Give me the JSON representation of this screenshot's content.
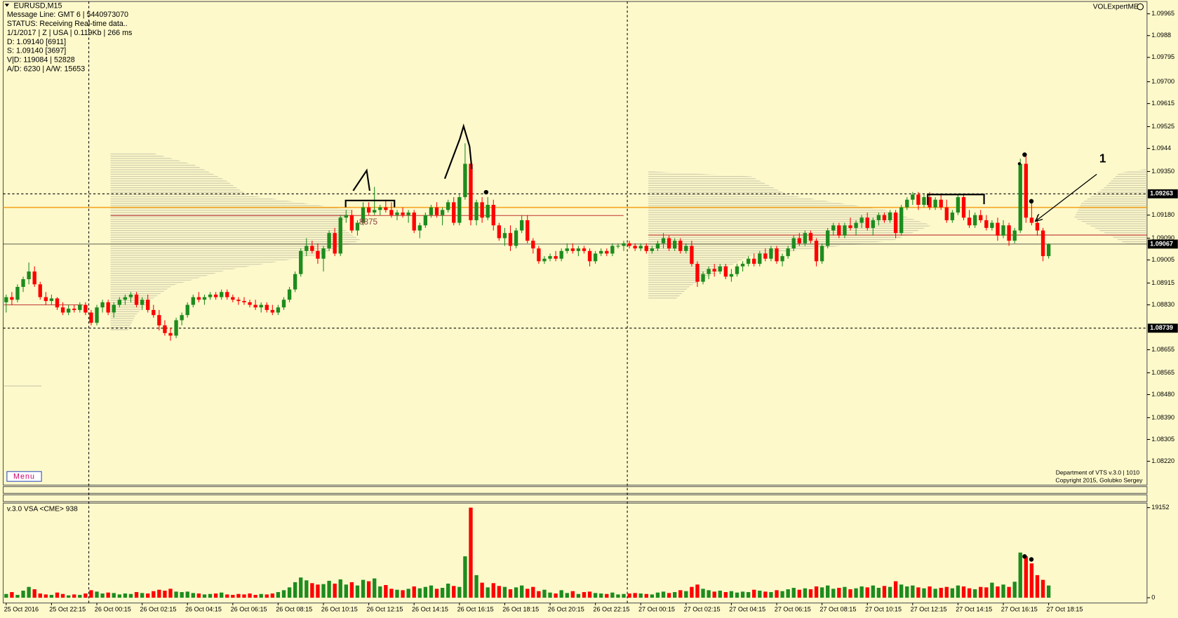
{
  "chart_data": [
    {
      "type": "candlestick",
      "title": "EURUSD,M15",
      "categories": [
        "25 Oct 2016",
        null,
        null,
        null,
        null,
        null,
        null,
        null,
        "25 Oct 22:15",
        null,
        null,
        null,
        null,
        null,
        null,
        null,
        "26 Oct 00:15",
        null,
        null,
        null,
        null,
        null,
        null,
        null,
        "26 Oct 02:15",
        null,
        null,
        null,
        null,
        null,
        null,
        null,
        "26 Oct 04:15",
        null,
        null,
        null,
        null,
        null,
        null,
        null,
        "26 Oct 06:15",
        null,
        null,
        null,
        null,
        null,
        null,
        null,
        "26 Oct 08:15",
        null,
        null,
        null,
        null,
        null,
        null,
        null,
        "26 Oct 10:15",
        null,
        null,
        null,
        null,
        null,
        null,
        null,
        "26 Oct 12:15",
        null,
        null,
        null,
        null,
        null,
        null,
        null,
        "26 Oct 14:15",
        null,
        null,
        null,
        null,
        null,
        null,
        null,
        "26 Oct 16:15",
        null,
        null,
        null,
        null,
        null,
        null,
        null,
        "26 Oct 18:15",
        null,
        null,
        null,
        null,
        null,
        null,
        null,
        "26 Oct 20:15",
        null,
        null,
        null,
        null,
        null,
        null,
        null,
        "26 Oct 22:15",
        null,
        null,
        null,
        null,
        null,
        null,
        null,
        "27 Oct 00:15",
        null,
        null,
        null,
        null,
        null,
        null,
        null,
        "27 Oct 02:15",
        null,
        null,
        null,
        null,
        null,
        null,
        null,
        "27 Oct 04:15",
        null,
        null,
        null,
        null,
        null,
        null,
        null,
        "27 Oct 06:15",
        null,
        null,
        null,
        null,
        null,
        null,
        null,
        "27 Oct 08:15",
        null,
        null,
        null,
        null,
        null,
        null,
        null,
        "27 Oct 10:15",
        null,
        null,
        null,
        null,
        null,
        null,
        null,
        "27 Oct 12:15",
        null,
        null,
        null,
        null,
        null,
        null,
        null,
        "27 Oct 14:15",
        null,
        null,
        null,
        null,
        null,
        null,
        null,
        "27 Oct 16:15",
        null,
        null,
        null,
        null,
        null,
        null,
        null,
        "27 Oct 18:15"
      ],
      "open": [
        1.0884,
        1.0886,
        1.0885,
        1.089,
        1.0893,
        1.0896,
        1.0891,
        1.0886,
        1.08845,
        1.08855,
        1.0882,
        1.088,
        1.08815,
        1.0881,
        1.0883,
        1.088,
        1.0876,
        1.0882,
        1.0884,
        1.088,
        1.0883,
        1.0885,
        1.0886,
        1.0887,
        1.0883,
        1.0885,
        1.0881,
        1.0879,
        1.0875,
        1.0872,
        1.0871,
        1.0877,
        1.0879,
        1.0883,
        1.0886,
        1.0885,
        1.0886,
        1.0887,
        1.0886,
        1.0888,
        1.0886,
        1.0885,
        1.08845,
        1.0884,
        1.0883,
        1.0882,
        1.0883,
        1.0881,
        1.088,
        1.0882,
        1.0885,
        1.0889,
        1.0895,
        1.0904,
        1.0906,
        1.0904,
        1.0901,
        1.0905,
        1.0911,
        1.0903,
        1.0917,
        1.0918,
        1.0912,
        1.0915,
        1.0921,
        1.0919,
        1.092,
        1.0921,
        1.092,
        1.0918,
        1.0919,
        1.0918,
        1.0919,
        1.0912,
        1.0914,
        1.0918,
        1.0921,
        1.0918,
        1.092,
        1.0923,
        1.0915,
        1.0925,
        1.0938,
        1.0916,
        1.0923,
        1.0917,
        1.0922,
        1.0914,
        1.0909,
        1.0911,
        1.0906,
        1.0912,
        1.0916,
        1.0908,
        1.0905,
        1.09,
        1.0901,
        1.0902,
        1.0901,
        1.0904,
        1.0905,
        1.0904,
        1.0905,
        1.0904,
        1.09,
        1.0903,
        1.0904,
        1.0903,
        1.0906,
        1.0906,
        1.0907,
        1.0906,
        1.0905,
        1.0906,
        1.0904,
        1.0905,
        1.0907,
        1.0909,
        1.0905,
        1.0908,
        1.0904,
        1.0906,
        1.0899,
        1.0892,
        1.0895,
        1.0897,
        1.0896,
        1.0898,
        1.0894,
        1.0895,
        1.0898,
        1.0899,
        1.0901,
        1.0899,
        1.0903,
        1.0901,
        1.0905,
        1.09,
        1.0902,
        1.0905,
        1.0909,
        1.0907,
        1.0911,
        1.0908,
        1.09,
        1.0906,
        1.0912,
        1.0914,
        1.091,
        1.0914,
        1.0913,
        1.0915,
        1.0917,
        1.0913,
        1.0916,
        1.0918,
        1.0916,
        1.0919,
        1.0911,
        1.0921,
        1.0924,
        1.0926,
        1.0922,
        1.0925,
        1.0921,
        1.0924,
        1.0921,
        1.0916,
        1.0919,
        1.0925,
        1.0917,
        1.0914,
        1.0918,
        1.0916,
        1.0913,
        1.0915,
        1.091,
        1.0914,
        1.0908,
        1.0912,
        1.0938,
        1.0917,
        1.0915,
        1.0912,
        1.0902
      ],
      "high": [
        1.0887,
        1.0888,
        1.0891,
        1.0894,
        1.08995,
        1.0898,
        1.0892,
        1.0888,
        1.0887,
        1.0886,
        1.0884,
        1.0883,
        1.0883,
        1.0884,
        1.0884,
        1.0881,
        1.0883,
        1.0885,
        1.0885,
        1.0884,
        1.0886,
        1.0887,
        1.0888,
        1.0888,
        1.0886,
        1.0887,
        1.0883,
        1.0881,
        1.0877,
        1.0874,
        1.0878,
        1.088,
        1.0884,
        1.0887,
        1.0888,
        1.0887,
        1.0888,
        1.0888,
        1.0889,
        1.0889,
        1.0887,
        1.0886,
        1.0886,
        1.0885,
        1.0885,
        1.0884,
        1.0884,
        1.0883,
        1.0883,
        1.0886,
        1.089,
        1.0896,
        1.0905,
        1.0909,
        1.0908,
        1.0907,
        1.0906,
        1.0912,
        1.0913,
        1.0918,
        1.092,
        1.092,
        1.0916,
        1.0923,
        1.0923,
        1.0929,
        1.0922,
        1.0924,
        1.0923,
        1.092,
        1.0921,
        1.092,
        1.092,
        1.0915,
        1.0919,
        1.0922,
        1.0923,
        1.0921,
        1.0924,
        1.0925,
        1.0926,
        1.0946,
        1.0939,
        1.0924,
        1.0925,
        1.0925,
        1.0924,
        1.0915,
        1.0913,
        1.0914,
        1.0913,
        1.0918,
        1.0918,
        1.0909,
        1.0906,
        1.0902,
        1.0903,
        1.0904,
        1.0905,
        1.0907,
        1.0907,
        1.0906,
        1.0906,
        1.0905,
        1.0904,
        1.0905,
        1.0905,
        1.0907,
        1.0907,
        1.0908,
        1.0908,
        1.0907,
        1.0907,
        1.0907,
        1.0906,
        1.0908,
        1.0911,
        1.091,
        1.0909,
        1.0909,
        1.0907,
        1.0908,
        1.09,
        1.0896,
        1.0898,
        1.0899,
        1.0899,
        1.0899,
        1.0897,
        1.0899,
        1.09,
        1.0902,
        1.0903,
        1.0904,
        1.0905,
        1.0906,
        1.0906,
        1.0903,
        1.0906,
        1.091,
        1.0911,
        1.0912,
        1.0912,
        1.0909,
        1.0907,
        1.0913,
        1.0915,
        1.0915,
        1.0915,
        1.0917,
        1.0916,
        1.0918,
        1.0919,
        1.0917,
        1.0919,
        1.0919,
        1.092,
        1.092,
        1.0922,
        1.0925,
        1.0927,
        1.0927,
        1.0926,
        1.0927,
        1.0925,
        1.0926,
        1.0924,
        1.092,
        1.0926,
        1.0926,
        1.092,
        1.0919,
        1.092,
        1.0918,
        1.0916,
        1.0917,
        1.0916,
        1.0915,
        1.0913,
        1.094,
        1.0942,
        1.0923,
        1.0918,
        1.0913,
        1.0907
      ],
      "low": [
        1.088,
        1.0883,
        1.0884,
        1.0888,
        1.0891,
        1.089,
        1.0885,
        1.0883,
        1.0883,
        1.0881,
        1.0879,
        1.0879,
        1.088,
        1.088,
        1.0879,
        1.0875,
        1.0875,
        1.088,
        1.0879,
        1.0878,
        1.0882,
        1.0883,
        1.0884,
        1.0882,
        1.0881,
        1.088,
        1.0878,
        1.0873,
        1.0871,
        1.0869,
        1.087,
        1.0875,
        1.0878,
        1.0882,
        1.0884,
        1.0883,
        1.0885,
        1.0885,
        1.0885,
        1.0885,
        1.0884,
        1.0883,
        1.0883,
        1.0882,
        1.0881,
        1.088,
        1.088,
        1.0879,
        1.0879,
        1.0881,
        1.0884,
        1.0888,
        1.0894,
        1.0902,
        1.0903,
        1.0899,
        1.0896,
        1.0904,
        1.0902,
        1.0902,
        1.0915,
        1.0911,
        1.091,
        1.0914,
        1.0918,
        1.0918,
        1.0918,
        1.0919,
        1.0917,
        1.0916,
        1.0917,
        1.0915,
        1.0911,
        1.0909,
        1.0913,
        1.0917,
        1.0917,
        1.0914,
        1.0919,
        1.0914,
        1.0914,
        1.0924,
        1.0914,
        1.0914,
        1.0915,
        1.0916,
        1.0912,
        1.0908,
        1.0906,
        1.0904,
        1.0905,
        1.0911,
        1.0907,
        1.0903,
        1.0899,
        1.0899,
        1.09,
        1.09,
        1.09,
        1.0903,
        1.0903,
        1.0902,
        1.0903,
        1.0898,
        1.0899,
        1.0902,
        1.0902,
        1.0902,
        1.0905,
        1.0904,
        1.0905,
        1.0904,
        1.0904,
        1.0903,
        1.0903,
        1.0904,
        1.0905,
        1.0904,
        1.0904,
        1.0903,
        1.0903,
        1.0898,
        1.089,
        1.0891,
        1.0893,
        1.0894,
        1.0895,
        1.0893,
        1.0892,
        1.0894,
        1.0896,
        1.0898,
        1.0898,
        1.0898,
        1.09,
        1.09,
        1.0899,
        1.0898,
        1.0901,
        1.0904,
        1.0906,
        1.0906,
        1.0907,
        1.0898,
        1.0899,
        1.0905,
        1.091,
        1.0909,
        1.0909,
        1.0912,
        1.091,
        1.0913,
        1.0912,
        1.091,
        1.0914,
        1.0915,
        1.0915,
        1.0909,
        1.091,
        1.092,
        1.0922,
        1.092,
        1.0921,
        1.092,
        1.092,
        1.092,
        1.0915,
        1.0915,
        1.0918,
        1.0916,
        1.0913,
        1.0913,
        1.0915,
        1.0912,
        1.0912,
        1.0908,
        1.0909,
        1.0906,
        1.0907,
        1.0911,
        1.0915,
        1.0914,
        1.091,
        1.09,
        1.0901
      ],
      "close": [
        1.0886,
        1.0885,
        1.089,
        1.0893,
        1.0896,
        1.0891,
        1.0886,
        1.08845,
        1.08855,
        1.0882,
        1.088,
        1.08815,
        1.0881,
        1.0883,
        1.088,
        1.0876,
        1.0882,
        1.0884,
        1.088,
        1.0883,
        1.0885,
        1.0886,
        1.0887,
        1.0883,
        1.0885,
        1.0881,
        1.0879,
        1.0875,
        1.0872,
        1.0871,
        1.0877,
        1.0879,
        1.0883,
        1.0886,
        1.0885,
        1.0886,
        1.0887,
        1.0886,
        1.0888,
        1.0886,
        1.0885,
        1.08845,
        1.0884,
        1.0883,
        1.0882,
        1.0883,
        1.0881,
        1.088,
        1.0882,
        1.0885,
        1.0889,
        1.0895,
        1.0904,
        1.0906,
        1.0904,
        1.0901,
        1.0905,
        1.0911,
        1.0903,
        1.0917,
        1.0918,
        1.0912,
        1.0915,
        1.0921,
        1.0919,
        1.092,
        1.0921,
        1.092,
        1.0918,
        1.0919,
        1.0918,
        1.0919,
        1.0912,
        1.0914,
        1.0918,
        1.0921,
        1.0918,
        1.092,
        1.0923,
        1.0915,
        1.0925,
        1.0938,
        1.0916,
        1.0923,
        1.0917,
        1.0922,
        1.0914,
        1.0909,
        1.0911,
        1.0906,
        1.0912,
        1.0916,
        1.0908,
        1.0905,
        1.09,
        1.0901,
        1.0902,
        1.0901,
        1.0904,
        1.0905,
        1.0904,
        1.0905,
        1.0904,
        1.09,
        1.0903,
        1.0904,
        1.0903,
        1.0906,
        1.0906,
        1.0907,
        1.0906,
        1.0905,
        1.0906,
        1.0904,
        1.0905,
        1.0907,
        1.0909,
        1.0905,
        1.0908,
        1.0904,
        1.0906,
        1.0899,
        1.0892,
        1.0895,
        1.0897,
        1.0896,
        1.0898,
        1.0894,
        1.0895,
        1.0898,
        1.0899,
        1.0901,
        1.0899,
        1.0903,
        1.0901,
        1.0905,
        1.09,
        1.0902,
        1.0905,
        1.0909,
        1.0907,
        1.0911,
        1.0908,
        1.09,
        1.0906,
        1.0912,
        1.0914,
        1.091,
        1.0914,
        1.0913,
        1.0915,
        1.0917,
        1.0913,
        1.0916,
        1.0918,
        1.0916,
        1.0919,
        1.0911,
        1.0921,
        1.0924,
        1.0926,
        1.0922,
        1.0925,
        1.0921,
        1.0924,
        1.0921,
        1.0916,
        1.0919,
        1.0925,
        1.0917,
        1.0914,
        1.0918,
        1.0916,
        1.0913,
        1.0915,
        1.091,
        1.0914,
        1.0908,
        1.0912,
        1.0938,
        1.0917,
        1.0915,
        1.0912,
        1.0902,
        1.09067
      ],
      "up_color": "#1e8c1e",
      "down_color": "#ff0000",
      "ylim": [
        1.0813,
        1.1001
      ],
      "yticks": [
        1.09965,
        1.0988,
        1.09795,
        {
          "value": 1.097,
          "label": "1.09700"
        },
        1.09615,
        1.09525,
        1.0944,
        {
          "value": 1.0935,
          "label": "1.09350"
        },
        {
          "value": 1.0918,
          "label": "1.09180"
        },
        {
          "value": 1.0909,
          "label": "1.09090"
        },
        1.09005,
        1.08915,
        {
          "value": 1.0883,
          "label": "1.08830"
        },
        1.08655,
        1.08565,
        {
          "value": 1.0848,
          "label": "1.08480"
        },
        {
          "value": 1.0839,
          "label": "1.08390"
        },
        1.08305,
        {
          "value": 1.0822,
          "label": "1.08220"
        }
      ],
      "price_levels": [
        1.09263,
        1.09067,
        1.08739
      ],
      "level_line": {
        "value": 1.0921,
        "color": "#f5a623"
      },
      "annotations": [
        "8875",
        "1"
      ]
    },
    {
      "type": "bar",
      "title": "v.3.0 VSA <CME> 938",
      "values": [
        800,
        1200,
        600,
        1500,
        2300,
        1800,
        900,
        700,
        600,
        1100,
        800,
        500,
        700,
        600,
        900,
        1600,
        1300,
        900,
        1100,
        1000,
        700,
        900,
        800,
        1200,
        1000,
        900,
        1400,
        1700,
        1500,
        1900,
        1300,
        1200,
        1300,
        1000,
        900,
        700,
        800,
        900,
        1100,
        700,
        600,
        800,
        700,
        900,
        600,
        800,
        700,
        900,
        1200,
        1600,
        2200,
        3300,
        4300,
        3700,
        3100,
        2800,
        2900,
        3600,
        3000,
        3900,
        2800,
        3300,
        2600,
        3800,
        3500,
        4100,
        2400,
        2700,
        1900,
        1700,
        1600,
        1900,
        2400,
        2000,
        2300,
        2600,
        1900,
        2100,
        3000,
        2500,
        2300,
        8800,
        19152,
        4800,
        3200,
        2200,
        3100,
        2500,
        2300,
        1800,
        2200,
        2600,
        1900,
        2300,
        1400,
        1700,
        1100,
        900,
        1600,
        1000,
        1400,
        800,
        1200,
        1300,
        1000,
        900,
        800,
        1100,
        700,
        800,
        900,
        1000,
        900,
        800,
        700,
        1100,
        1300,
        1000,
        1200,
        1600,
        1400,
        2300,
        2800,
        1900,
        1600,
        1300,
        1500,
        1200,
        1400,
        1100,
        1300,
        1200,
        1700,
        1500,
        1300,
        1200,
        1600,
        1400,
        1800,
        2100,
        1700,
        2000,
        1800,
        2400,
        2200,
        2600,
        1900,
        2100,
        2300,
        1800,
        2000,
        2400,
        2200,
        2600,
        2100,
        2500,
        2300,
        3500,
        2800,
        2400,
        2600,
        2200,
        2000,
        2400,
        1900,
        2100,
        2300,
        2000,
        2600,
        2400,
        2000,
        1800,
        2300,
        2200,
        3200,
        2400,
        2800,
        2300,
        3400,
        9600,
        8800,
        7300,
        4800,
        3800,
        2600
      ],
      "ylim": [
        0,
        19152
      ],
      "yticks": [
        19152,
        0
      ]
    }
  ],
  "ui": {
    "info": [
      "Message Line: GMT 6 | 5440973070",
      "STATUS:  Receiving Real-time data..",
      "1/1/2017 | Z | USA | 0.119Kb | 266 ms",
      "D: 1.09140  [6911]",
      "S: 1.09140  [3697]",
      "V|D: 119084 | 52828",
      "A/D: 6230 | A/W: 15653"
    ],
    "brand": "VOLExpertME",
    "menu": "Menu",
    "footer": [
      "Department of VTS  v.3.0 | 1010",
      "Copyright 2015, Golubko Sergey"
    ]
  }
}
